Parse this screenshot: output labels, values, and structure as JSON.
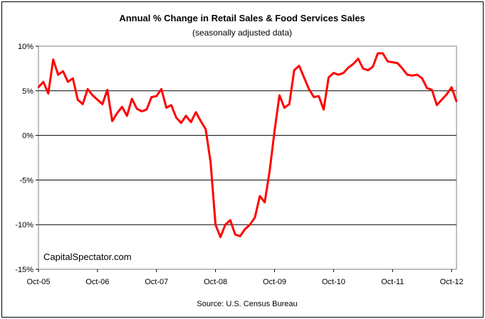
{
  "chart_data": {
    "type": "line",
    "title": "Annual %  Change in Retail Sales & Food Services Sales",
    "subtitle": "(seasonally adjusted data)",
    "source": "Source:  U.S. Census Bureau",
    "watermark": "CapitalSpectator.com",
    "xlabel": "",
    "ylabel": "",
    "ylim": [
      -15,
      10
    ],
    "grid": true,
    "legend": "none",
    "y_ticks": [
      {
        "value": 10,
        "label": "10%"
      },
      {
        "value": 5,
        "label": "5%"
      },
      {
        "value": 0,
        "label": "0%"
      },
      {
        "value": -5,
        "label": "-5%"
      },
      {
        "value": -10,
        "label": "-10%"
      },
      {
        "value": -15,
        "label": "-15%"
      }
    ],
    "x_ticks": [
      {
        "index": 0,
        "label": "Oct-05"
      },
      {
        "index": 12,
        "label": "Oct-06"
      },
      {
        "index": 24,
        "label": "Oct-07"
      },
      {
        "index": 36,
        "label": "Oct-08"
      },
      {
        "index": 48,
        "label": "Oct-09"
      },
      {
        "index": 60,
        "label": "Oct-10"
      },
      {
        "index": 72,
        "label": "Oct-11"
      },
      {
        "index": 84,
        "label": "Oct-12"
      }
    ],
    "series": [
      {
        "color": "#ff0000",
        "values": [
          5.4,
          6.0,
          4.7,
          8.5,
          6.8,
          7.2,
          6.0,
          6.4,
          4.0,
          3.5,
          5.2,
          4.5,
          4.0,
          3.5,
          5.1,
          1.6,
          2.5,
          3.2,
          2.2,
          4.1,
          3.0,
          2.7,
          2.9,
          4.3,
          4.4,
          5.2,
          3.1,
          3.4,
          2.0,
          1.4,
          2.2,
          1.5,
          2.6,
          1.6,
          0.7,
          -3.0,
          -10.0,
          -11.4,
          -10.0,
          -9.5,
          -11.1,
          -11.3,
          -10.5,
          -10.0,
          -9.2,
          -6.8,
          -7.5,
          -4.0,
          0.5,
          4.5,
          3.1,
          3.5,
          7.3,
          7.8,
          6.5,
          5.2,
          4.3,
          4.4,
          2.9,
          6.5,
          7.0,
          6.8,
          7.0,
          7.6,
          8.0,
          8.6,
          7.5,
          7.3,
          7.7,
          9.2,
          9.2,
          8.3,
          8.2,
          8.1,
          7.5,
          6.8,
          6.7,
          6.8,
          6.4,
          5.3,
          5.1,
          3.4,
          4.0,
          4.6,
          5.4,
          3.8
        ]
      }
    ]
  }
}
